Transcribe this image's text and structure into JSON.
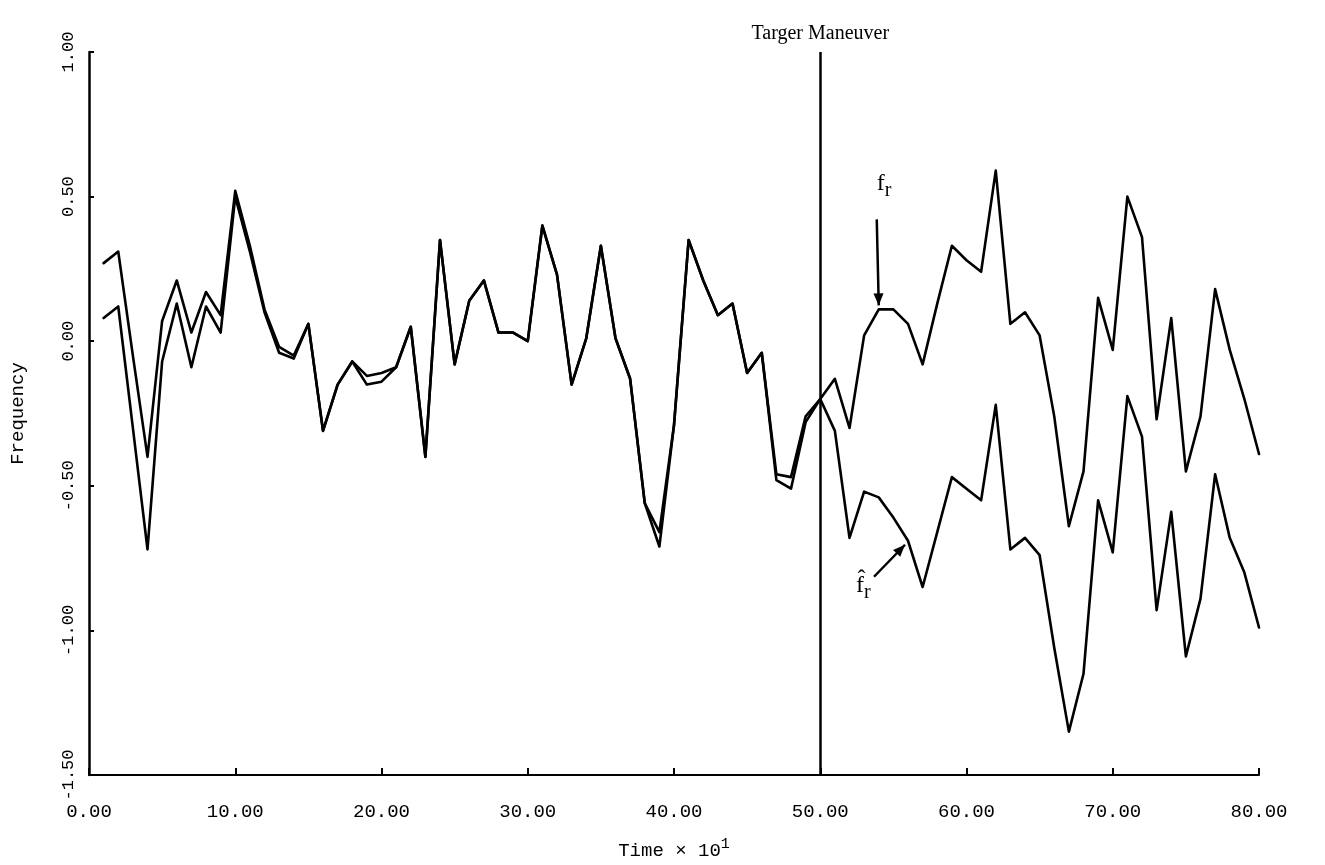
{
  "chart_data": {
    "type": "line",
    "xlabel": "Time × 10$^{1}$",
    "ylabel": "Frequency",
    "x": [
      1,
      2,
      3,
      4,
      5,
      6,
      7,
      8,
      9,
      10,
      11,
      12,
      13,
      14,
      15,
      16,
      17,
      18,
      19,
      20,
      21,
      22,
      23,
      24,
      25,
      26,
      27,
      28,
      29,
      30,
      31,
      32,
      33,
      34,
      35,
      36,
      37,
      38,
      39,
      40,
      41,
      42,
      43,
      44,
      45,
      46,
      47,
      48,
      49,
      50,
      51,
      52,
      53,
      54,
      55,
      56,
      57,
      58,
      59,
      60,
      61,
      62,
      63,
      64,
      65,
      66,
      67,
      68,
      69,
      70,
      71,
      72,
      73,
      74,
      75,
      76,
      77,
      78,
      79,
      80
    ],
    "series": [
      {
        "color": "#000000",
        "values": [
          0.27,
          0.31,
          -0.05,
          -0.4,
          0.07,
          0.21,
          0.03,
          0.17,
          0.09,
          0.52,
          0.33,
          0.11,
          -0.02,
          -0.05,
          0.06,
          -0.31,
          -0.15,
          -0.07,
          -0.12,
          -0.11,
          -0.09,
          0.05,
          -0.4,
          0.35,
          -0.08,
          0.14,
          0.21,
          0.03,
          0.03,
          0.0,
          0.4,
          0.23,
          -0.15,
          0.01,
          0.33,
          0.01,
          -0.13,
          -0.56,
          -0.66,
          -0.29,
          0.35,
          0.21,
          0.09,
          0.13,
          -0.11,
          -0.04,
          -0.46,
          -0.47,
          -0.26,
          -0.2,
          -0.13,
          -0.3,
          0.02,
          0.11,
          0.11,
          0.06,
          -0.08,
          0.13,
          0.33,
          0.28,
          0.24,
          0.59,
          0.06,
          0.1,
          0.02,
          -0.26,
          -0.64,
          -0.45,
          0.15,
          -0.03,
          0.5,
          0.36,
          -0.27,
          0.08,
          -0.45,
          -0.26,
          0.18,
          -0.03,
          -0.2,
          -0.39
        ]
      },
      {
        "color": "#000000",
        "values": [
          0.08,
          0.12,
          -0.3,
          -0.72,
          -0.07,
          0.13,
          -0.09,
          0.12,
          0.03,
          0.5,
          0.31,
          0.1,
          -0.04,
          -0.06,
          0.06,
          -0.31,
          -0.15,
          -0.07,
          -0.15,
          -0.14,
          -0.09,
          0.05,
          -0.4,
          0.35,
          -0.08,
          0.14,
          0.21,
          0.03,
          0.03,
          0.0,
          0.4,
          0.23,
          -0.15,
          0.01,
          0.33,
          0.01,
          -0.13,
          -0.56,
          -0.71,
          -0.29,
          0.35,
          0.21,
          0.09,
          0.13,
          -0.11,
          -0.04,
          -0.48,
          -0.51,
          -0.28,
          -0.2,
          -0.31,
          -0.68,
          -0.52,
          -0.54,
          -0.61,
          -0.69,
          -0.85,
          -0.66,
          -0.47,
          -0.51,
          -0.55,
          -0.22,
          -0.72,
          -0.68,
          -0.74,
          -1.06,
          -1.35,
          -1.15,
          -0.55,
          -0.73,
          -0.19,
          -0.33,
          -0.93,
          -0.59,
          -1.09,
          -0.89,
          -0.46,
          -0.68,
          -0.8,
          -0.99
        ]
      }
    ],
    "xlim": [
      0,
      80
    ],
    "xticks": [
      {
        "value": 0,
        "label": "0.00"
      },
      {
        "value": 10,
        "label": "10.00"
      },
      {
        "value": 20,
        "label": "20.00"
      },
      {
        "value": 30,
        "label": "30.00"
      },
      {
        "value": 40,
        "label": "40.00"
      },
      {
        "value": 50,
        "label": "50.00"
      },
      {
        "value": 60,
        "label": "60.00"
      },
      {
        "value": 70,
        "label": "70.00"
      },
      {
        "value": 80,
        "label": "80.00"
      }
    ],
    "ylim": [
      -1.5,
      1.0
    ],
    "yticks": [
      {
        "value": -1.5,
        "label": "-1.50"
      },
      {
        "value": -1,
        "label": "-1.00"
      },
      {
        "value": -0.5,
        "label": "-0.50"
      },
      {
        "value": 0,
        "label": "0.00"
      },
      {
        "value": 0.5,
        "label": "0.50"
      },
      {
        "value": 1,
        "label": "1.00"
      }
    ],
    "ref_lines": [
      {
        "axis": "x",
        "value": 50,
        "label": "Targer Maneuver",
        "color": "#000000"
      }
    ],
    "annotations": [
      {
        "text": "f$_{r}$",
        "x": 54,
        "y": 0.11
      },
      {
        "text": "f̂$_{r}$",
        "x": 56,
        "y": -0.69
      }
    ],
    "grid": false,
    "marker": "none",
    "line_style": "solid"
  }
}
